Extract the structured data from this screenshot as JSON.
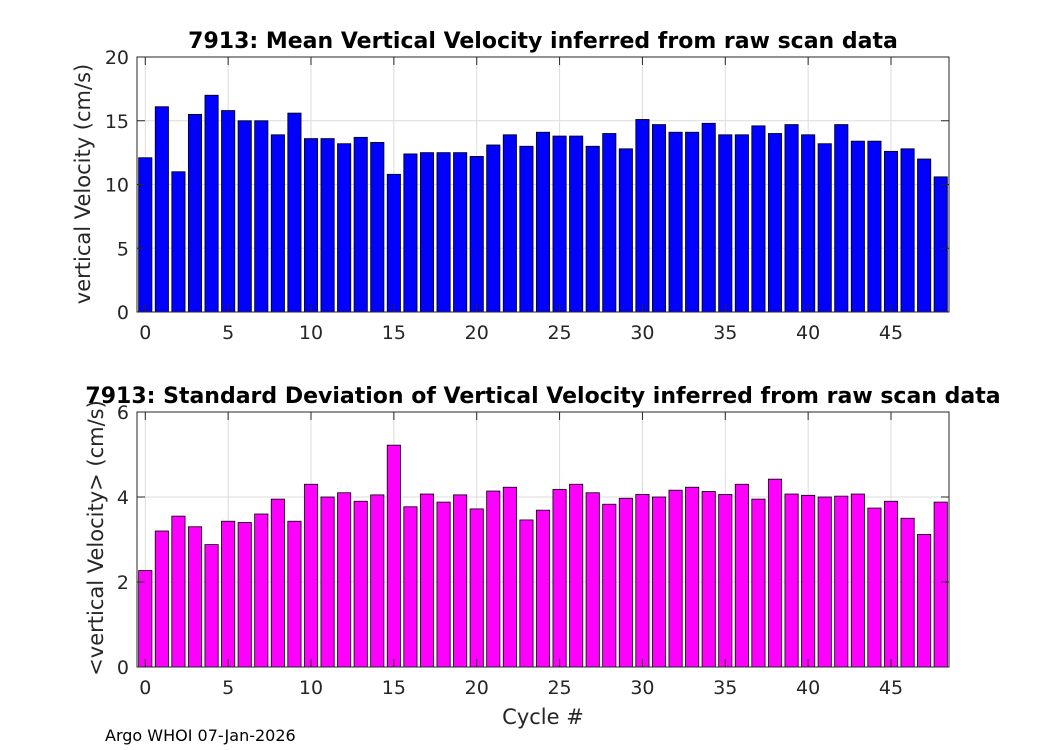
{
  "chart_data": [
    {
      "type": "bar",
      "title": "7913: Mean Vertical Velocity inferred from raw scan data",
      "xlabel": "",
      "ylabel": "vertical Velocity (cm/s)",
      "ylim": [
        0,
        20
      ],
      "xlim": [
        -0.5,
        48.5
      ],
      "xticks": [
        0,
        5,
        10,
        15,
        20,
        25,
        30,
        35,
        40,
        45
      ],
      "yticks": [
        0,
        5,
        10,
        15,
        20
      ],
      "grid": true,
      "bar_color": "#0000ff",
      "x": [
        0,
        1,
        2,
        3,
        4,
        5,
        6,
        7,
        8,
        9,
        10,
        11,
        12,
        13,
        14,
        15,
        16,
        17,
        18,
        19,
        20,
        21,
        22,
        23,
        24,
        25,
        26,
        27,
        28,
        29,
        30,
        31,
        32,
        33,
        34,
        35,
        36,
        37,
        38,
        39,
        40,
        41,
        42,
        43,
        44,
        45,
        46,
        47,
        48
      ],
      "values": [
        12.1,
        16.1,
        11.0,
        15.5,
        17.0,
        15.8,
        15.0,
        15.0,
        13.9,
        15.6,
        13.6,
        13.6,
        13.2,
        13.7,
        13.3,
        10.8,
        12.4,
        12.5,
        12.5,
        12.5,
        12.2,
        13.1,
        13.9,
        13.0,
        14.1,
        13.8,
        13.8,
        13.0,
        14.0,
        12.8,
        15.1,
        14.7,
        14.1,
        14.1,
        14.8,
        13.9,
        13.9,
        14.6,
        14.0,
        14.7,
        13.9,
        13.2,
        14.7,
        13.4,
        13.4,
        12.6,
        12.8,
        12.0,
        10.6
      ]
    },
    {
      "type": "bar",
      "title": "7913: Standard Deviation of Vertical Velocity inferred from raw scan data",
      "xlabel": "Cycle #",
      "ylabel": "<vertical Velocity> (cm/s)",
      "ylim": [
        0,
        6
      ],
      "xlim": [
        -0.5,
        48.5
      ],
      "xticks": [
        0,
        5,
        10,
        15,
        20,
        25,
        30,
        35,
        40,
        45
      ],
      "yticks": [
        0,
        2,
        4,
        6
      ],
      "grid": true,
      "bar_color": "#ff00ff",
      "x": [
        0,
        1,
        2,
        3,
        4,
        5,
        6,
        7,
        8,
        9,
        10,
        11,
        12,
        13,
        14,
        15,
        16,
        17,
        18,
        19,
        20,
        21,
        22,
        23,
        24,
        25,
        26,
        27,
        28,
        29,
        30,
        31,
        32,
        33,
        34,
        35,
        36,
        37,
        38,
        39,
        40,
        41,
        42,
        43,
        44,
        45,
        46,
        47,
        48
      ],
      "values": [
        2.27,
        3.2,
        3.55,
        3.3,
        2.88,
        3.43,
        3.4,
        3.6,
        3.95,
        3.43,
        4.3,
        4.0,
        4.1,
        3.9,
        4.05,
        5.22,
        3.77,
        4.07,
        3.88,
        4.05,
        3.72,
        4.14,
        4.23,
        3.46,
        3.69,
        4.18,
        4.3,
        4.1,
        3.83,
        3.97,
        4.06,
        4.0,
        4.16,
        4.23,
        4.13,
        4.06,
        4.3,
        3.95,
        4.42,
        4.07,
        4.04,
        4.0,
        4.02,
        4.07,
        3.74,
        3.9,
        3.5,
        3.12,
        3.88
      ]
    }
  ],
  "footer": "Argo WHOI 07-Jan-2026"
}
